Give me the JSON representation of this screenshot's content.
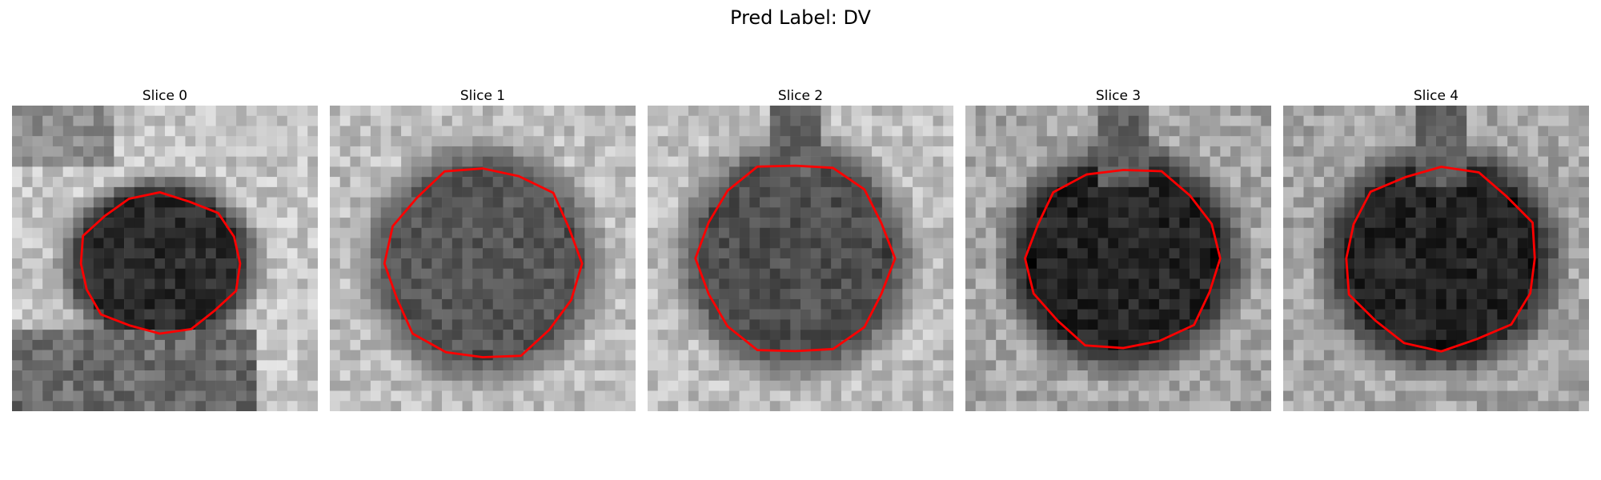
{
  "figure": {
    "title": "Pred Label: DV"
  },
  "panels": [
    {
      "title": "Slice 0",
      "lesion_level": 0.08,
      "background_level": 0.75,
      "contour_color": "#ff0000"
    },
    {
      "title": "Slice 1",
      "lesion_level": 0.25,
      "background_level": 0.72,
      "contour_color": "#ff0000"
    },
    {
      "title": "Slice 2",
      "lesion_level": 0.22,
      "background_level": 0.72,
      "contour_color": "#ff0000"
    },
    {
      "title": "Slice 3",
      "lesion_level": 0.05,
      "background_level": 0.62,
      "contour_color": "#ff0000"
    },
    {
      "title": "Slice 4",
      "lesion_level": 0.05,
      "background_level": 0.62,
      "contour_color": "#ff0000"
    }
  ]
}
